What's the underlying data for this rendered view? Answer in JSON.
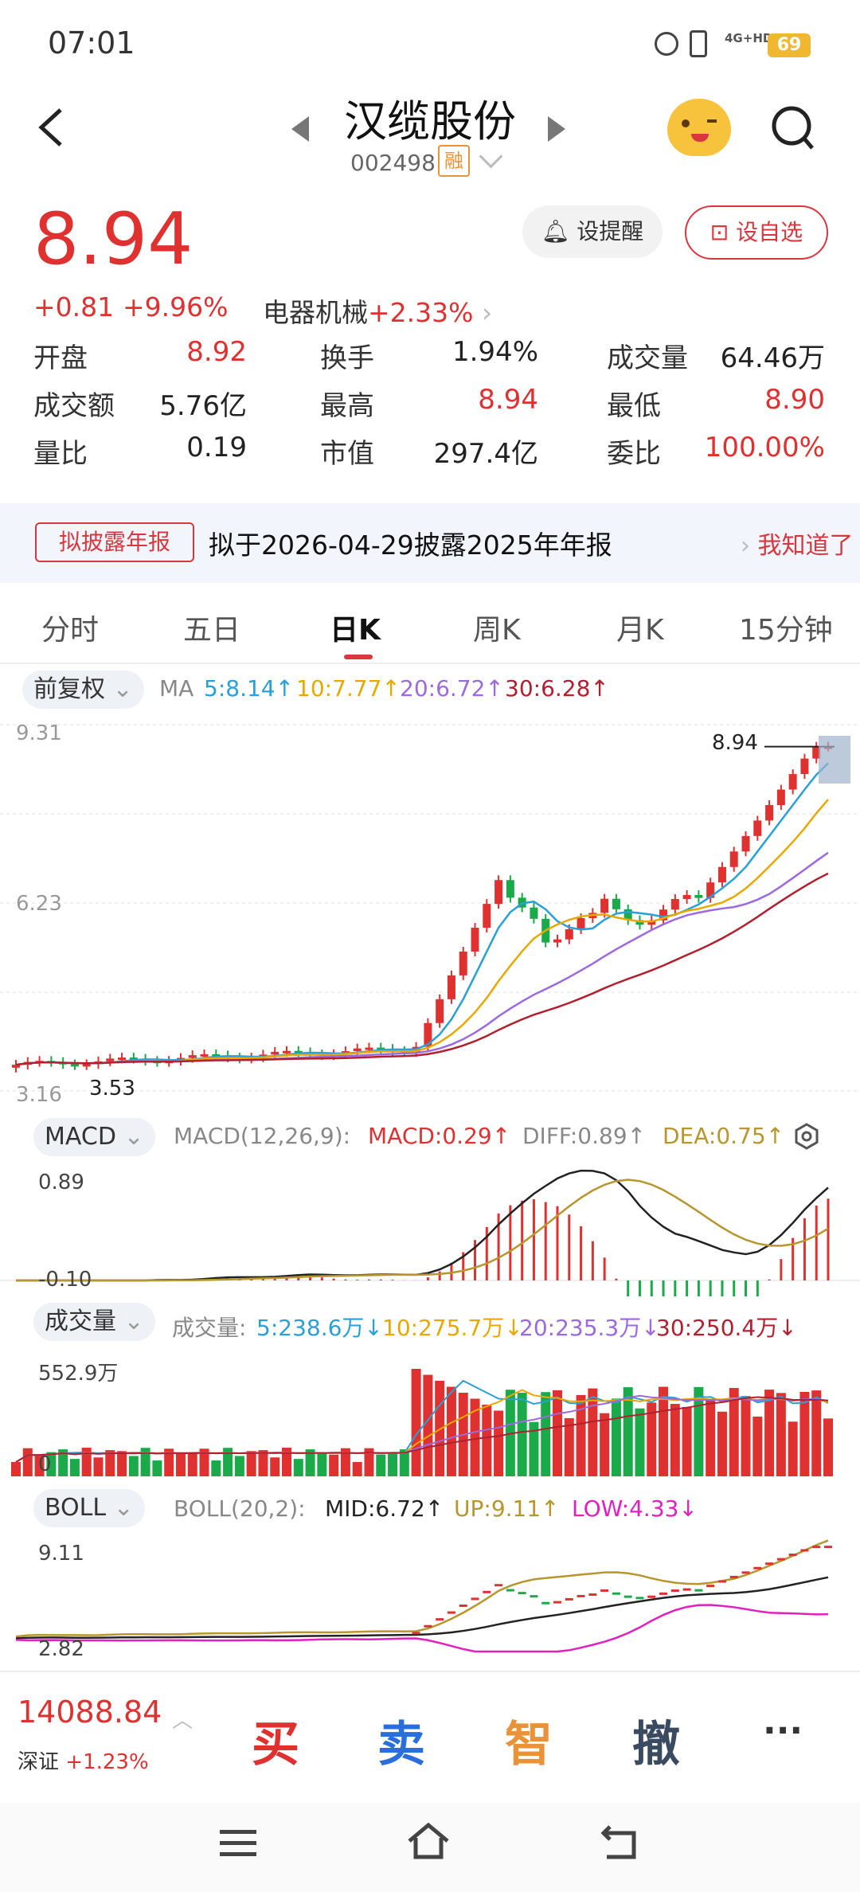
{
  "status": {
    "time": "07:01",
    "network": "4G+HD",
    "battery": "69"
  },
  "header": {
    "title": "汉缆股份",
    "code": "002498",
    "margin_tag": "融"
  },
  "quote": {
    "price": "8.94",
    "change": "+0.81",
    "change_pct": "+9.96%",
    "sector": "电器机械",
    "sector_pct": "+2.33%",
    "alert_label": "设提醒",
    "watch_label": "设自选"
  },
  "stats": [
    {
      "label": "开盘",
      "value": "8.92",
      "color": "#e03131"
    },
    {
      "label": "换手",
      "value": "1.94%",
      "color": "#222"
    },
    {
      "label": "成交量",
      "value": "64.46万",
      "color": "#222"
    },
    {
      "label": "成交额",
      "value": "5.76亿",
      "color": "#222"
    },
    {
      "label": "最高",
      "value": "8.94",
      "color": "#e03131"
    },
    {
      "label": "最低",
      "value": "8.90",
      "color": "#e03131"
    },
    {
      "label": "量比",
      "value": "0.19",
      "color": "#222"
    },
    {
      "label": "市值",
      "value": "297.4亿",
      "color": "#222"
    },
    {
      "label": "委比",
      "value": "100.00%",
      "color": "#e03131"
    }
  ],
  "banner": {
    "tag": "拟披露年报",
    "text": "拟于2026-04-29披露2025年年报",
    "action": "我知道了"
  },
  "tabs": [
    "分时",
    "五日",
    "日K",
    "周K",
    "月K",
    "15分钟"
  ],
  "kline": {
    "adjust": "前复权",
    "ma_label": "MA",
    "ma": [
      {
        "text": "5:8.14↑",
        "color": "#2a9fd8"
      },
      {
        "text": "10:7.77↑",
        "color": "#e7a800"
      },
      {
        "text": "20:6.72↑",
        "color": "#9c6ade"
      },
      {
        "text": "30:6.28↑",
        "color": "#b22030"
      }
    ],
    "y_top": "9.31",
    "y_mid": "6.23",
    "y_bottom": "3.16",
    "low_mark": "3.53",
    "high_mark": "8.94"
  },
  "macd": {
    "chip": "MACD",
    "params": "MACD(12,26,9):",
    "macd": "MACD:0.29↑",
    "diff": "DIFF:0.89↑",
    "dea": "DEA:0.75↑",
    "y_top": "0.89",
    "y_bottom": "-0.10"
  },
  "volume": {
    "chip": "成交量",
    "label": "成交量:",
    "ma5": "5:238.6万↓",
    "ma10": "10:275.7万↓",
    "ma20": "20:235.3万↓",
    "ma30": "30:250.4万↓",
    "y_top": "552.9万",
    "y_bottom": "0"
  },
  "boll": {
    "chip": "BOLL",
    "params": "BOLL(20,2):",
    "mid": "MID:6.72↑",
    "up": "UP:9.11↑",
    "low": "LOW:4.33↓",
    "y_top": "9.11",
    "y_bottom": "2.82"
  },
  "bottom": {
    "index_value": "14088.84",
    "index_name": "深证",
    "index_pct": "+1.23%",
    "buy": "买",
    "sell": "卖",
    "smart": "智",
    "cancel": "撤",
    "more": "···"
  },
  "colors": {
    "up": "#e03131",
    "down": "#1aaa4a",
    "accent": "#d9363e"
  }
}
